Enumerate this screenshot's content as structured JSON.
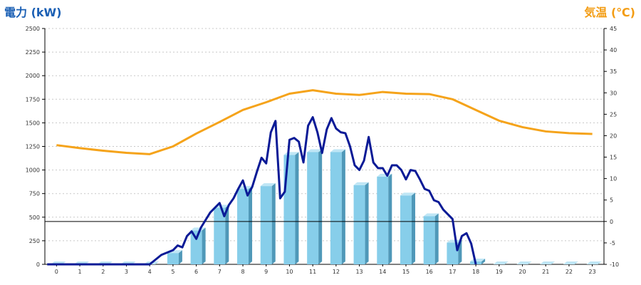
{
  "chart_data": {
    "type": "bar+line",
    "title": "",
    "y_left_label": "電力 (kW)",
    "y_right_label": "気温 (℃)",
    "x_ticks": [
      "0",
      "1",
      "2",
      "3",
      "4",
      "5",
      "6",
      "7",
      "8",
      "9",
      "10",
      "11",
      "12",
      "13",
      "14",
      "15",
      "16",
      "17",
      "18",
      "19",
      "20",
      "21",
      "22",
      "23"
    ],
    "y_left_range": [
      0,
      2500
    ],
    "y_left_ticks": [
      0,
      250,
      500,
      750,
      1000,
      1250,
      1500,
      1750,
      2000,
      2250,
      2500
    ],
    "y_right_range": [
      -10,
      45
    ],
    "y_right_ticks": [
      -10,
      -5,
      0,
      5,
      10,
      15,
      20,
      25,
      30,
      35,
      40,
      45
    ],
    "grid": true,
    "colors": {
      "bar_face": "#87ceea",
      "bar_side": "#4f98b8",
      "bar_top": "#bfe6f5",
      "realtime_line": "#0a1a96",
      "temperature_line": "#f5a31a",
      "zero_line": "#000000",
      "grid": "#c8c8c8"
    },
    "series": [
      {
        "kind": "bar",
        "axis": "left",
        "x": [
          0,
          1,
          2,
          3,
          4,
          5,
          6,
          7,
          8,
          9,
          10,
          11,
          12,
          13,
          14,
          15,
          16,
          17,
          18,
          19,
          20,
          21,
          22,
          23
        ],
        "values": [
          0,
          0,
          0,
          0,
          0,
          120,
          360,
          600,
          800,
          830,
          1160,
          1190,
          1190,
          840,
          930,
          730,
          510,
          230,
          30,
          0,
          0,
          0,
          0,
          0
        ]
      },
      {
        "kind": "line",
        "axis": "left",
        "x": [
          4.0,
          4.5,
          5.0,
          5.2,
          5.4,
          5.6,
          5.8,
          6.0,
          6.2,
          6.4,
          6.6,
          6.8,
          7.0,
          7.2,
          7.4,
          7.6,
          7.8,
          8.0,
          8.2,
          8.4,
          8.6,
          8.8,
          9.0,
          9.2,
          9.4,
          9.6,
          9.8,
          10.0,
          10.2,
          10.4,
          10.6,
          10.8,
          11.0,
          11.2,
          11.4,
          11.6,
          11.8,
          12.0,
          12.2,
          12.4,
          12.6,
          12.8,
          13.0,
          13.2,
          13.4,
          13.6,
          13.8,
          14.0,
          14.2,
          14.4,
          14.6,
          14.8,
          15.0,
          15.2,
          15.4,
          15.6,
          15.8,
          16.0,
          16.2,
          16.4,
          16.6,
          16.8,
          17.0,
          17.2,
          17.4,
          17.6,
          17.8,
          18.0
        ],
        "values": [
          0,
          100,
          150,
          200,
          180,
          300,
          350,
          270,
          390,
          470,
          550,
          600,
          650,
          510,
          630,
          700,
          800,
          890,
          730,
          820,
          980,
          1130,
          1070,
          1400,
          1520,
          700,
          770,
          1320,
          1340,
          1300,
          1080,
          1470,
          1560,
          1400,
          1180,
          1430,
          1550,
          1440,
          1400,
          1390,
          1250,
          1050,
          1000,
          1100,
          1350,
          1080,
          1020,
          1020,
          940,
          1050,
          1050,
          1000,
          900,
          1000,
          990,
          900,
          800,
          780,
          680,
          660,
          580,
          530,
          480,
          150,
          300,
          330,
          220,
          0
        ]
      },
      {
        "kind": "line",
        "axis": "right",
        "x": [
          0,
          1,
          2,
          3,
          4,
          5,
          6,
          7,
          8,
          9,
          10,
          11,
          12,
          13,
          14,
          15,
          16,
          17,
          18,
          19,
          20,
          21,
          22,
          23
        ],
        "values": [
          17.8,
          17.1,
          16.5,
          16.0,
          15.7,
          17.5,
          20.5,
          23.2,
          26.0,
          27.8,
          29.8,
          30.6,
          29.8,
          29.5,
          30.2,
          29.8,
          29.7,
          28.5,
          26.0,
          23.5,
          22.0,
          21.0,
          20.6,
          20.4
        ]
      }
    ]
  }
}
